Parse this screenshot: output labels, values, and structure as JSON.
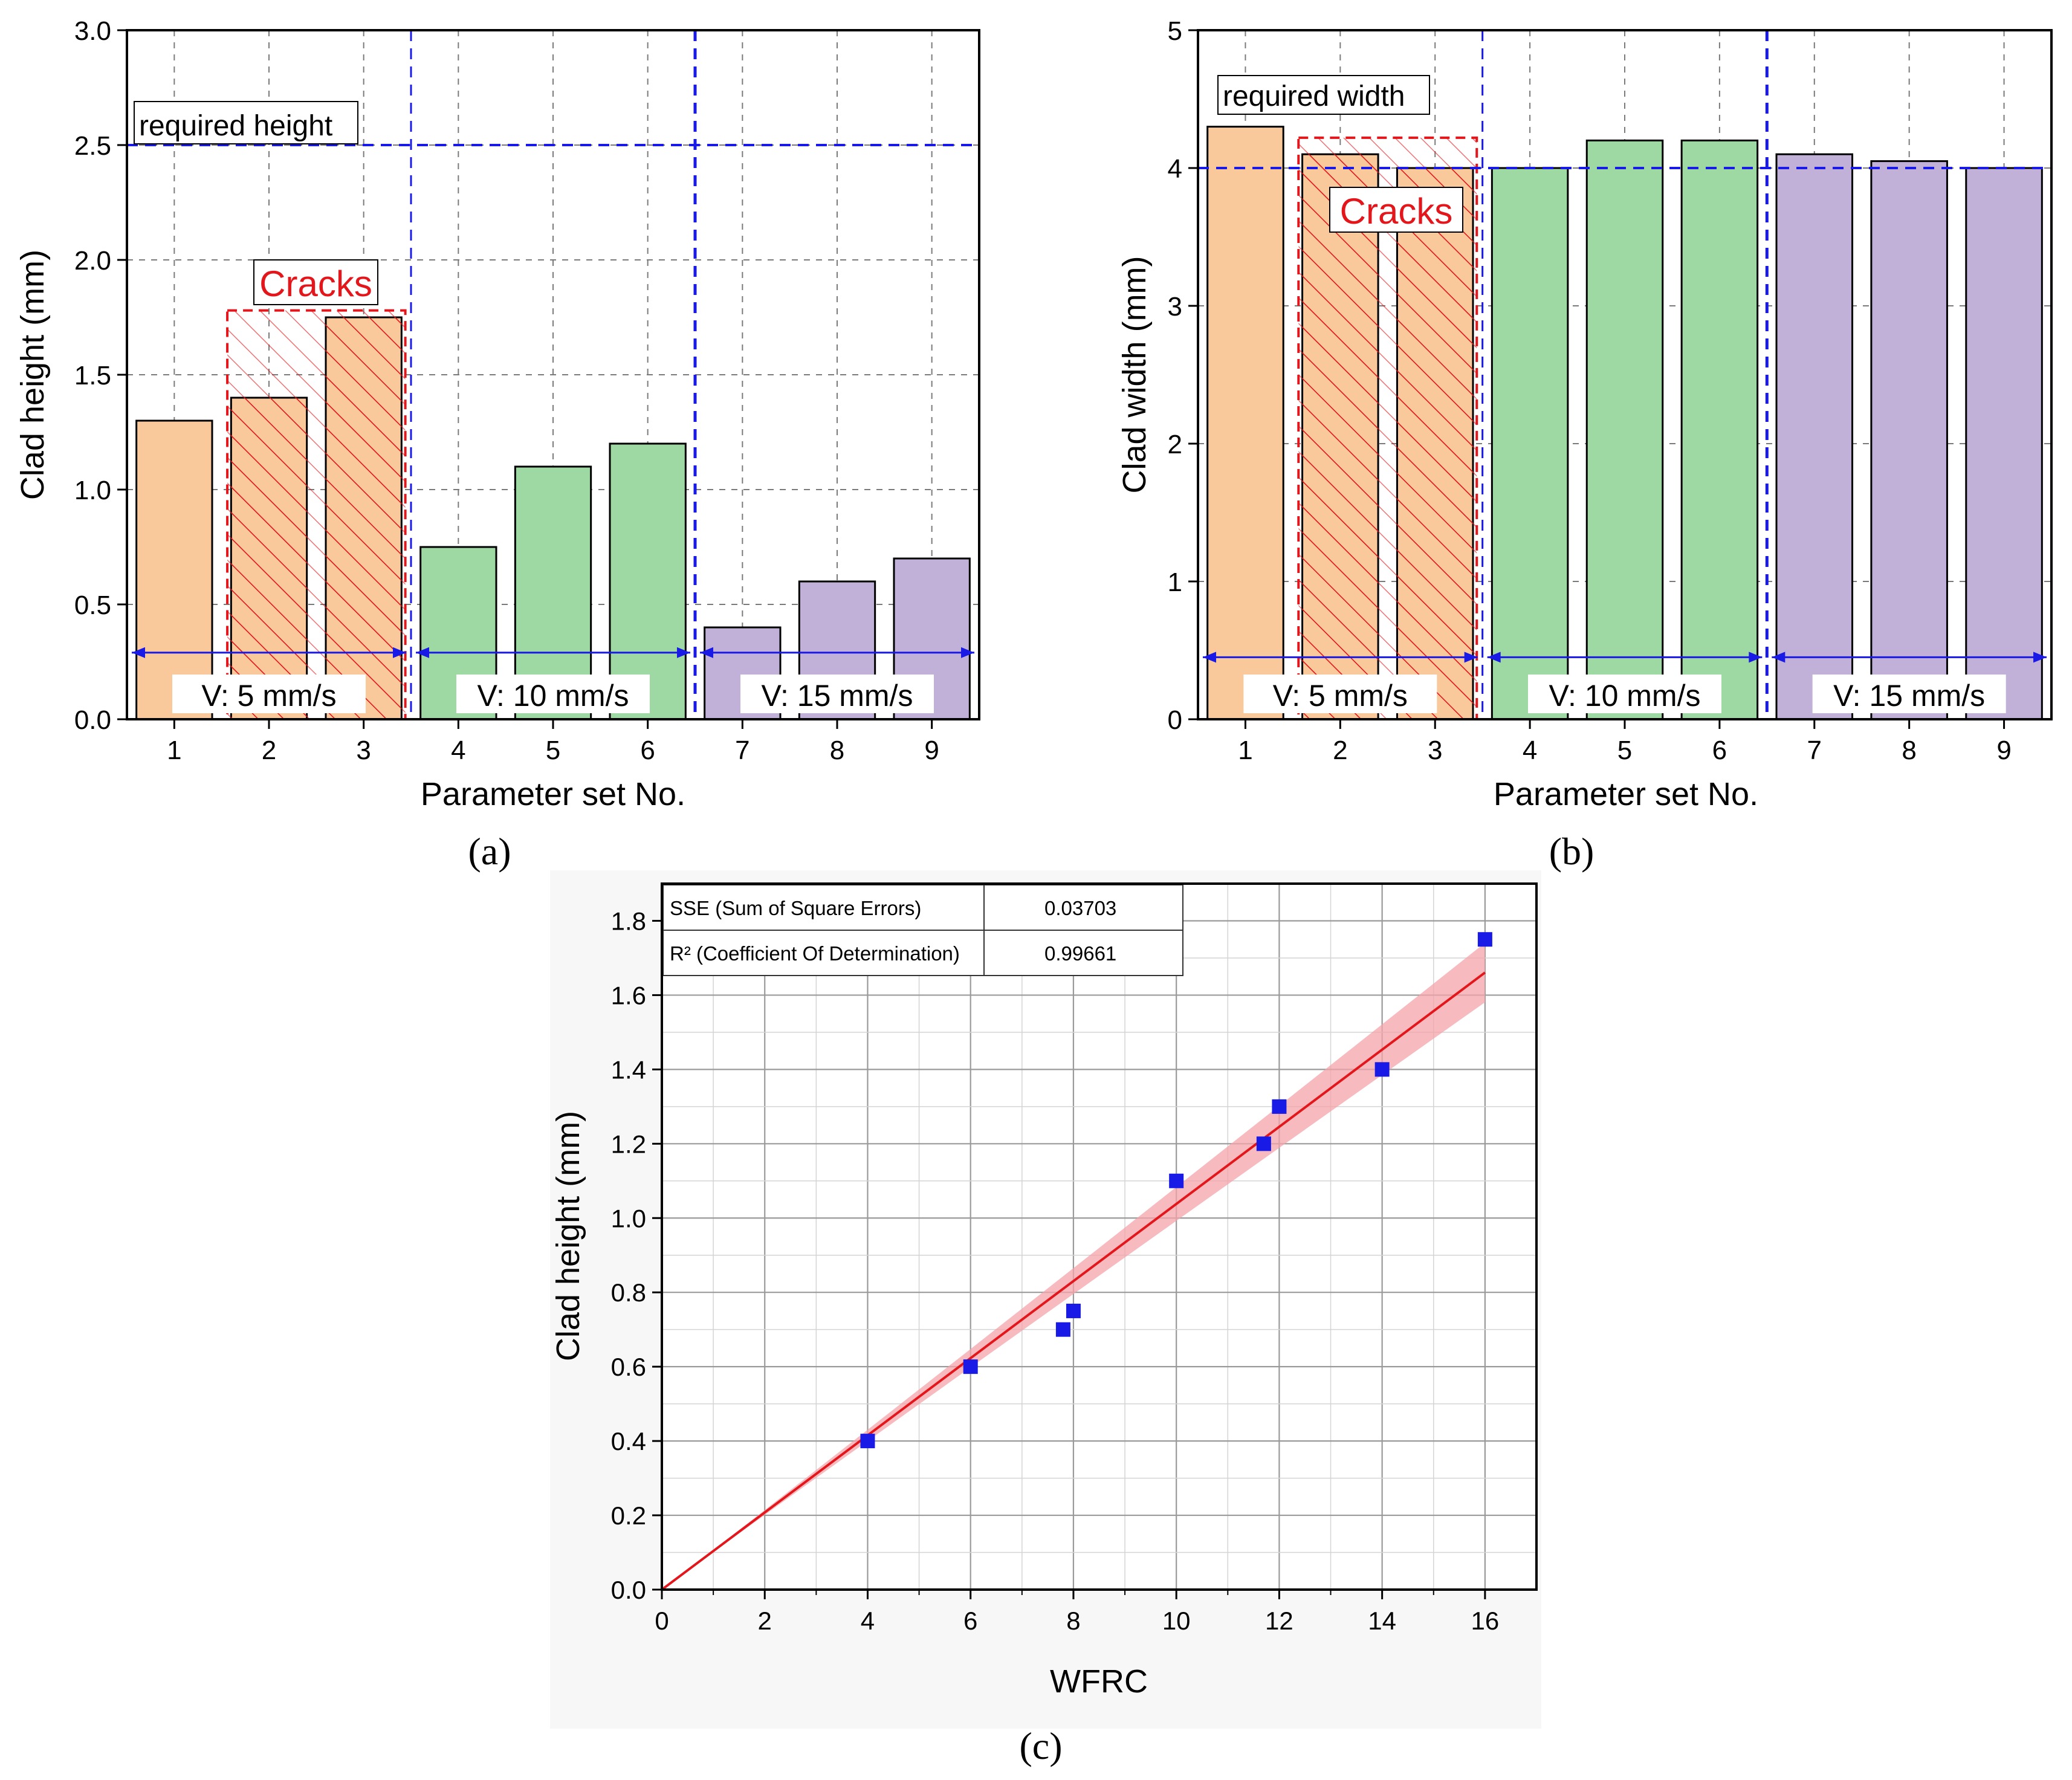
{
  "colors": {
    "orange": "#F9C89B",
    "green": "#9ED8A2",
    "purple": "#C1B1D8",
    "blue": "#1A1AE6",
    "red": "#E3161B",
    "grid": "#7A7A7A",
    "band": "#F4A3A8"
  },
  "chart_data": [
    {
      "id": "a",
      "type": "bar",
      "subfigure_label": "(a)",
      "xlabel": "Parameter set No.",
      "ylabel": "Clad height (mm)",
      "categories": [
        "1",
        "2",
        "3",
        "4",
        "5",
        "6",
        "7",
        "8",
        "9"
      ],
      "values": [
        1.3,
        1.4,
        1.75,
        0.75,
        1.1,
        1.2,
        0.4,
        0.6,
        0.7
      ],
      "bar_groups": [
        "orange",
        "orange",
        "orange",
        "green",
        "green",
        "green",
        "purple",
        "purple",
        "purple"
      ],
      "hatched": [
        false,
        true,
        true,
        false,
        false,
        false,
        false,
        false,
        false
      ],
      "ylim": [
        0,
        3.0
      ],
      "yticks": [
        "0.0",
        "0.5",
        "1.0",
        "1.5",
        "2.0",
        "2.5",
        "3.0"
      ],
      "yticks_values": [
        0,
        0.5,
        1.0,
        1.5,
        2.0,
        2.5,
        3.0
      ],
      "grid": true,
      "reference_line": {
        "value": 2.5,
        "label": "required height"
      },
      "cracks": {
        "label": "Cracks",
        "from_set": 2,
        "to_set": 3,
        "top_value": 1.78
      },
      "speed_arrow_value": 0.29,
      "speed_groups": [
        {
          "label": "V: 5 mm/s",
          "from_set": 1,
          "to_set": 3
        },
        {
          "label": "V: 10 mm/s",
          "from_set": 4,
          "to_set": 6
        },
        {
          "label": "V: 15 mm/s",
          "from_set": 7,
          "to_set": 9
        }
      ]
    },
    {
      "id": "b",
      "type": "bar",
      "subfigure_label": "(b)",
      "xlabel": "Parameter set No.",
      "ylabel": "Clad width (mm)",
      "categories": [
        "1",
        "2",
        "3",
        "4",
        "5",
        "6",
        "7",
        "8",
        "9"
      ],
      "values": [
        4.3,
        4.1,
        4.0,
        4.0,
        4.2,
        4.2,
        4.1,
        4.05,
        4.0
      ],
      "bar_groups": [
        "orange",
        "orange",
        "orange",
        "green",
        "green",
        "green",
        "purple",
        "purple",
        "purple"
      ],
      "hatched": [
        false,
        true,
        true,
        false,
        false,
        false,
        false,
        false,
        false
      ],
      "ylim": [
        0,
        5
      ],
      "yticks": [
        "0",
        "1",
        "2",
        "3",
        "4",
        "5"
      ],
      "yticks_values": [
        0,
        1,
        2,
        3,
        4,
        5
      ],
      "grid": true,
      "reference_line": {
        "value": 4.0,
        "label": "required width"
      },
      "cracks": {
        "label": "Cracks",
        "from_set": 2,
        "to_set": 3,
        "top_value": 4.22
      },
      "speed_arrow_value": 0.45,
      "speed_groups": [
        {
          "label": "V: 5 mm/s",
          "from_set": 1,
          "to_set": 3
        },
        {
          "label": "V: 10 mm/s",
          "from_set": 4,
          "to_set": 6
        },
        {
          "label": "V: 15 mm/s",
          "from_set": 7,
          "to_set": 9
        }
      ]
    },
    {
      "id": "c",
      "type": "scatter",
      "subfigure_label": "(c)",
      "xlabel": "WFRC",
      "ylabel": "Clad height (mm)",
      "x": [
        4,
        6,
        7.8,
        8,
        10,
        11.7,
        12,
        14,
        16
      ],
      "y": [
        0.4,
        0.6,
        0.7,
        0.75,
        1.1,
        1.2,
        1.3,
        1.4,
        1.75
      ],
      "xlim": [
        0,
        17
      ],
      "ylim": [
        0,
        1.9
      ],
      "xticks": [
        "0",
        "2",
        "4",
        "6",
        "8",
        "10",
        "12",
        "14",
        "16"
      ],
      "xticks_values": [
        0,
        2,
        4,
        6,
        8,
        10,
        12,
        14,
        16
      ],
      "yticks": [
        "0.0",
        "0.2",
        "0.4",
        "0.6",
        "0.8",
        "1.0",
        "1.2",
        "1.4",
        "1.6",
        "1.8"
      ],
      "yticks_values": [
        0,
        0.2,
        0.4,
        0.6,
        0.8,
        1.0,
        1.2,
        1.4,
        1.6,
        1.8
      ],
      "grid": true,
      "fit": {
        "slope": 0.1038,
        "intercept": 0,
        "x_range": [
          0,
          16
        ],
        "band_halfwidth_at_max": 0.08
      },
      "stats_table": [
        {
          "label": "SSE (Sum of Square Errors)",
          "value": "0.03703"
        },
        {
          "label": "R² (Coefficient Of Determination)",
          "value": "0.99661"
        }
      ]
    }
  ]
}
